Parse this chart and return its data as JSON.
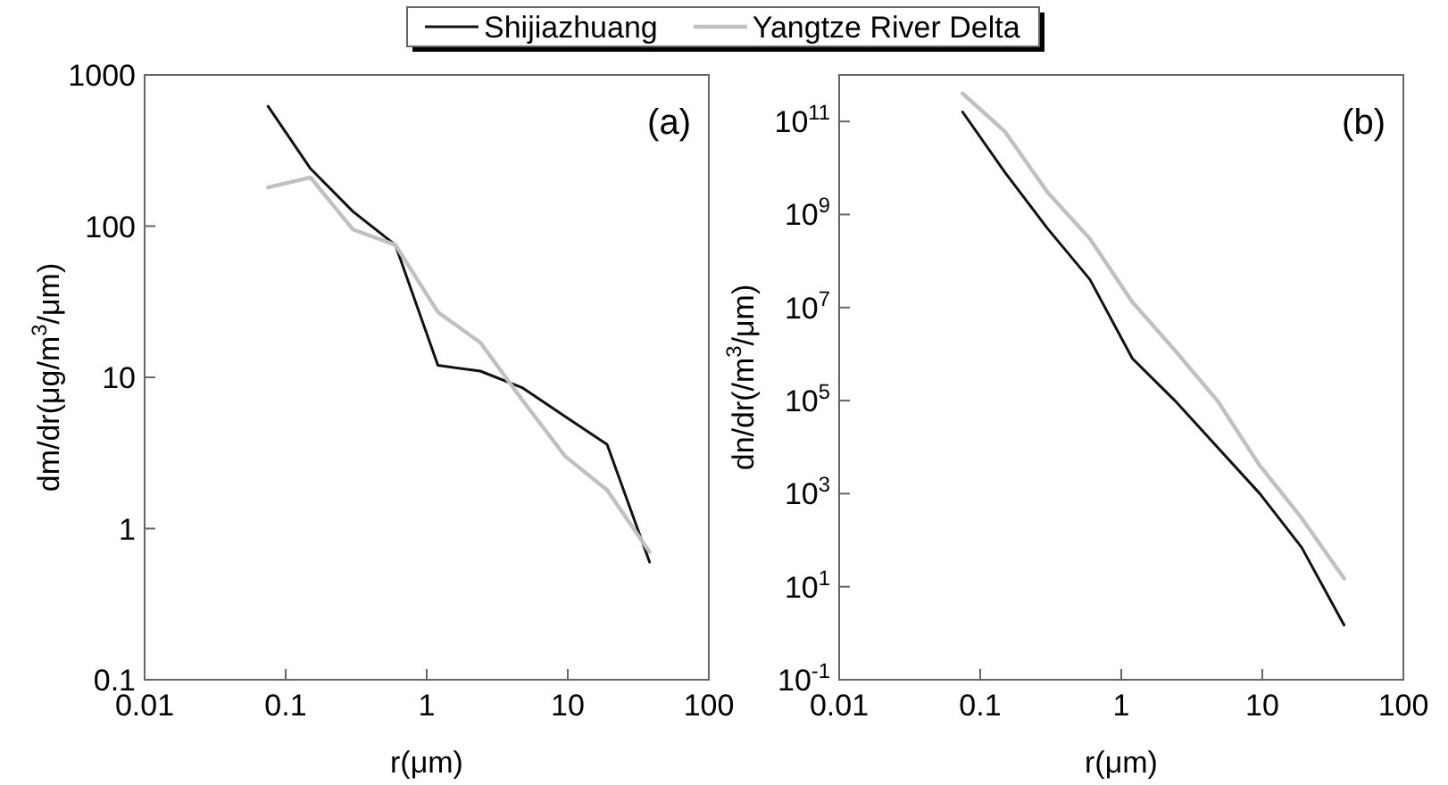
{
  "chart_data": [
    {
      "type": "line",
      "xlabel": "r(μm)",
      "ylabel": "dm/dr(μg/m$^{3}$/μm)",
      "log": "xy",
      "legend": "top",
      "grid": false,
      "annotations": [
        "(a)"
      ],
      "x": [
        0.075,
        0.15,
        0.3,
        0.6,
        1.2,
        2.4,
        4.8,
        9.6,
        19,
        38
      ],
      "xlim": [
        0.01,
        100
      ],
      "xticks": [
        0.01,
        0.1,
        1,
        10,
        100
      ],
      "ylim": [
        0.1,
        1000
      ],
      "yticks": [
        0.1,
        1,
        10,
        100,
        1000
      ],
      "series": [
        {
          "name": "Shijiazhuang",
          "color": "#111111",
          "values": [
            620,
            240,
            125,
            75,
            12,
            11,
            8.5,
            5.5,
            3.6,
            0.6
          ]
        },
        {
          "name": "Yangtze River Delta",
          "color": "#c0c0c0",
          "values": [
            180,
            210,
            95,
            75,
            27,
            17,
            7,
            3,
            1.8,
            0.7
          ]
        }
      ]
    },
    {
      "type": "line",
      "xlabel": "r(μm)",
      "ylabel": "dn/dr(/m$^{3}$/μm)",
      "log": "xy",
      "grid": false,
      "annotations": [
        "(b)"
      ],
      "x": [
        0.075,
        0.15,
        0.3,
        0.6,
        1.2,
        2.4,
        4.8,
        9.6,
        19,
        38
      ],
      "xlim": [
        0.01,
        100
      ],
      "xticks": [
        0.01,
        0.1,
        1,
        10,
        100
      ],
      "ylim": [
        0.1,
        1000000000000
      ],
      "yticks": [
        {
          "value": 0.1,
          "label": "10$^{-1}$"
        },
        {
          "value": 10,
          "label": "10$^{1}$"
        },
        {
          "value": 1000,
          "label": "10$^{3}$"
        },
        {
          "value": 100000,
          "label": "10$^{5}$"
        },
        {
          "value": 10000000,
          "label": "10$^{7}$"
        },
        {
          "value": 1000000000,
          "label": "10$^{9}$"
        },
        {
          "value": 100000000000,
          "label": "10$^{11}$"
        }
      ],
      "series": [
        {
          "color": "#111111",
          "values": [
            160000000000,
            8000000000,
            500000000,
            40000000,
            800000,
            100000,
            10000,
            1000,
            70,
            1.5
          ]
        },
        {
          "color": "#c0c0c0",
          "values": [
            400000000000,
            60000000000,
            3000000000,
            300000000,
            13000000,
            1200000,
            100000,
            4000,
            300,
            15
          ]
        }
      ]
    }
  ]
}
